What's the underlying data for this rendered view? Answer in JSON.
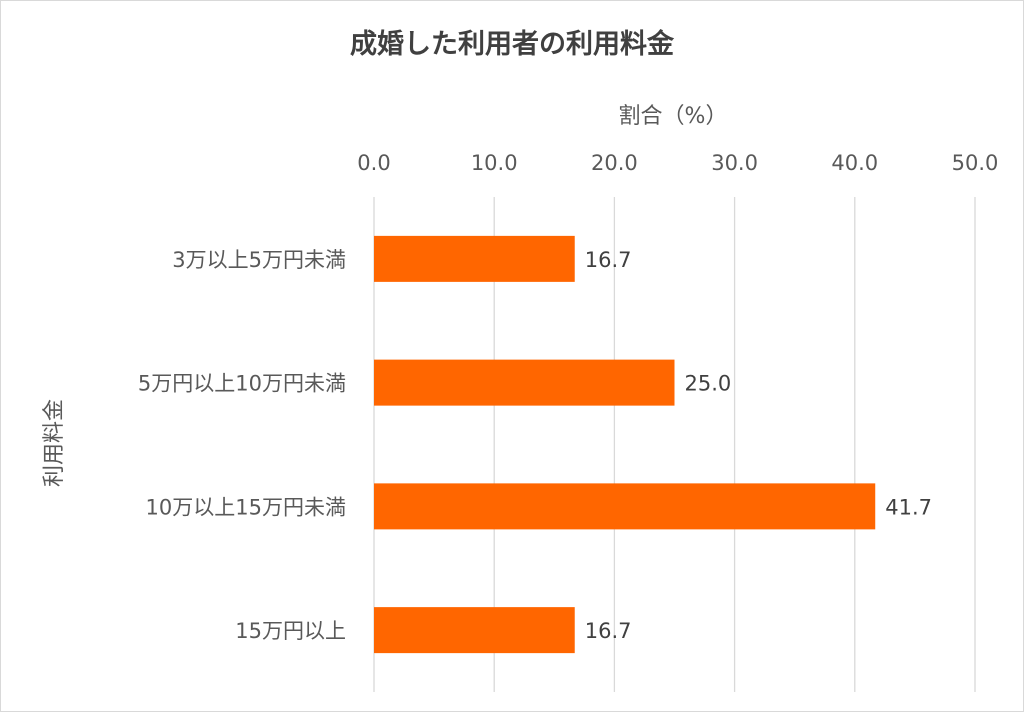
{
  "chart_data": {
    "type": "bar",
    "orientation": "horizontal",
    "title": "成婚した利用者の利用料金",
    "xlabel": "割合（%）",
    "ylabel": "利用料金",
    "categories": [
      "3万以上5万円未満",
      "5万円以上10万円未満",
      "10万以上15万円未満",
      "15万円以上"
    ],
    "values": [
      16.7,
      25.0,
      41.7,
      16.7
    ],
    "value_labels": [
      "16.7",
      "25.0",
      "41.7",
      "16.7"
    ],
    "xlim": [
      0,
      50
    ],
    "x_ticks": [
      "0.0",
      "10.0",
      "20.0",
      "30.0",
      "40.0",
      "50.0"
    ],
    "x_axis_position": "top",
    "grid": true,
    "bar_color": "#ff6600",
    "grid_color": "#d9d9d9"
  }
}
